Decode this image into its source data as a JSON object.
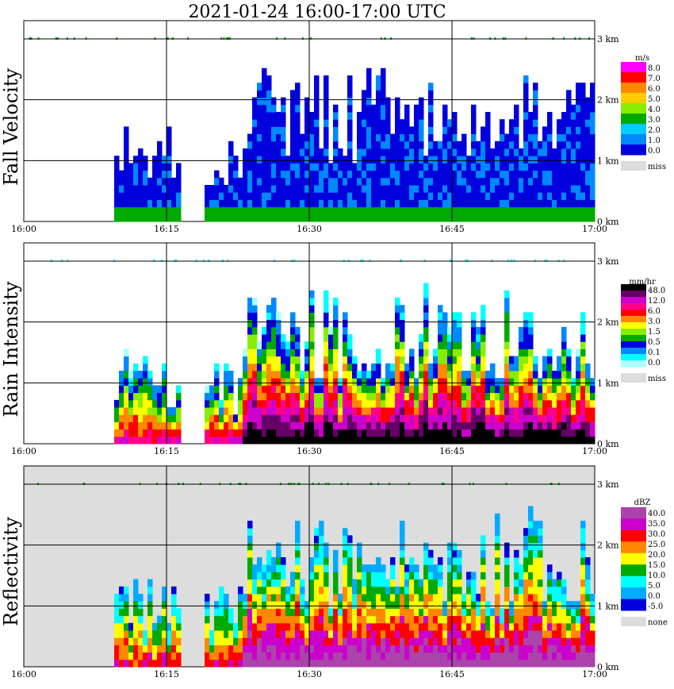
{
  "title": "2021-01-24   16:00-17:00 UTC",
  "time_ticks": [
    "16:00",
    "16:15",
    "16:30",
    "16:45",
    "17:00"
  ],
  "height_ticks": [
    "0 km",
    "1 km",
    "2 km",
    "3 km"
  ],
  "chart_data": [
    {
      "type": "heatmap",
      "ylabel": "Fall Velocity",
      "xlabel": "",
      "x_range": [
        "16:00",
        "17:00"
      ],
      "y_range_km": [
        0,
        3.3
      ],
      "grid": true,
      "legend_placement": "right",
      "colorbar": {
        "unit": "m/s",
        "levels": [
          "8.0",
          "7.0",
          "6.0",
          "5.0",
          "4.0",
          "3.0",
          "2.0",
          "1.0",
          "0.0"
        ],
        "colors": [
          "#ff00ff",
          "#ff0000",
          "#ff8800",
          "#ffcc00",
          "#88ee00",
          "#00aa00",
          "#00ccff",
          "#0088ff",
          "#0000dd"
        ],
        "miss_label": "miss",
        "miss_color": "#dddddd"
      }
    },
    {
      "type": "heatmap",
      "ylabel": "Rain Intensity",
      "xlabel": "",
      "x_range": [
        "16:00",
        "17:00"
      ],
      "y_range_km": [
        0,
        3.3
      ],
      "grid": true,
      "legend_placement": "right",
      "colorbar": {
        "unit": "mm/hr",
        "levels": [
          "48.0",
          "12.0",
          "6.0",
          "3.0",
          "1.5",
          "0.5",
          "0.1",
          "0.0"
        ],
        "colors": [
          "#000000",
          "#660066",
          "#cc00cc",
          "#ff0088",
          "#ff0000",
          "#ff8800",
          "#ffff00",
          "#88ee00",
          "#00aa00",
          "#0000dd",
          "#0088ff",
          "#00ffff",
          "#aaffff"
        ],
        "miss_label": "miss",
        "miss_color": "#dddddd"
      }
    },
    {
      "type": "heatmap",
      "ylabel": "Reflectivity",
      "xlabel": "",
      "x_range": [
        "16:00",
        "17:00"
      ],
      "y_range_km": [
        0,
        3.3
      ],
      "grid": true,
      "legend_placement": "right",
      "colorbar": {
        "unit": "dBZ",
        "levels": [
          "40.0",
          "35.0",
          "30.0",
          "25.0",
          "20.0",
          "15.0",
          "10.0",
          "5.0",
          "0.0",
          "-5.0"
        ],
        "colors": [
          "#aa44aa",
          "#cc00cc",
          "#ff0000",
          "#ff8800",
          "#ffff00",
          "#00aa00",
          "#00ffff",
          "#00aaff",
          "#0000dd"
        ],
        "miss_label": "none",
        "miss_color": "#dddddd"
      }
    }
  ]
}
